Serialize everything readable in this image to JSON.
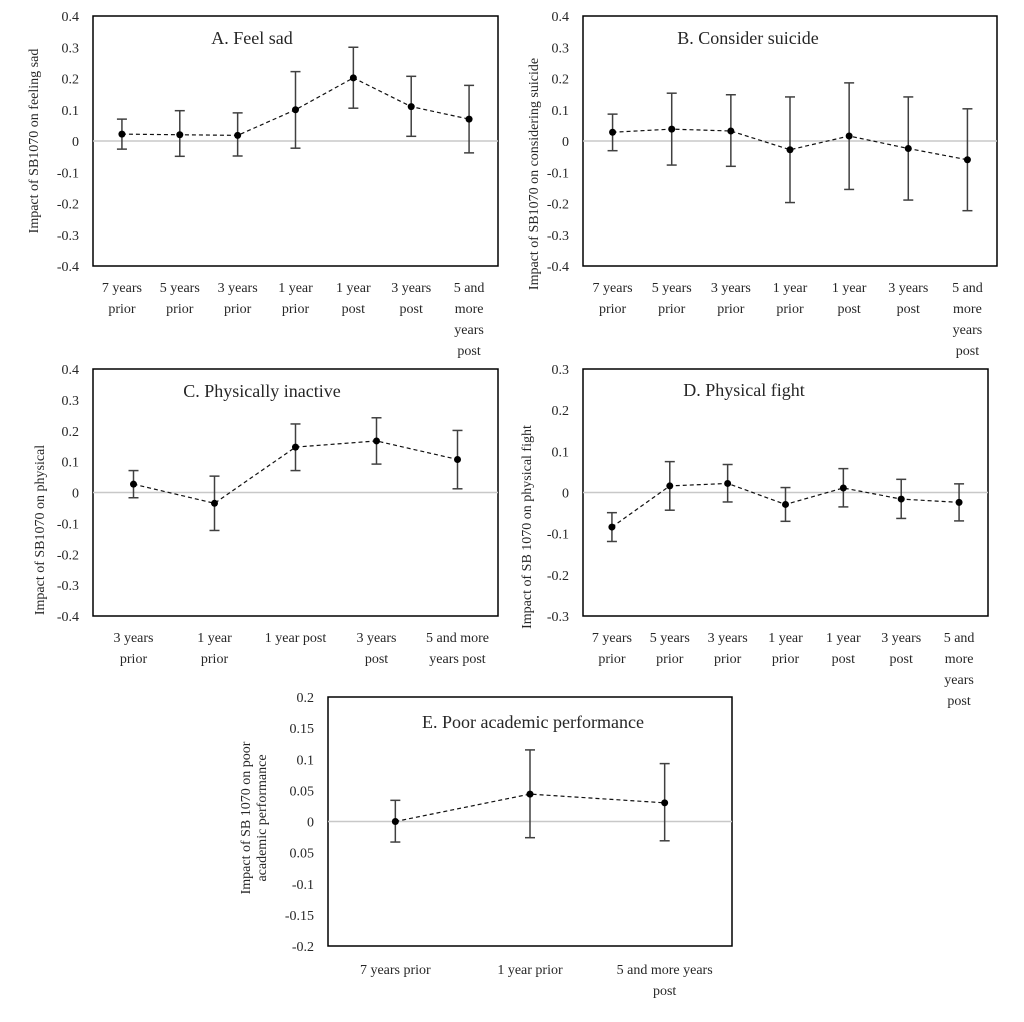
{
  "chart_data": [
    {
      "type": "line",
      "title": "A. Feel sad",
      "ylabel": "Impact of SB1070 on feeling sad",
      "xlabel": "",
      "ylim": [
        -0.4,
        0.4
      ],
      "ytick_labels": [
        "0.4",
        "0.3",
        "0.2",
        "0.1",
        "0",
        "-0.1",
        "-0.2",
        "-0.3",
        "-0.4"
      ],
      "categories": [
        [
          "7 years",
          "prior"
        ],
        [
          "5 years",
          "prior"
        ],
        [
          "3 years",
          "prior"
        ],
        [
          "1 year",
          "prior"
        ],
        [
          "1 year",
          "post"
        ],
        [
          "3 years",
          "post"
        ],
        [
          "5 and",
          "more",
          "years",
          "post"
        ]
      ],
      "values": [
        0.022,
        0.02,
        0.018,
        0.1,
        0.202,
        0.11,
        0.07
      ],
      "lower": [
        -0.026,
        -0.049,
        -0.048,
        -0.023,
        0.105,
        0.015,
        -0.038
      ],
      "upper": [
        0.07,
        0.097,
        0.09,
        0.222,
        0.3,
        0.207,
        0.178
      ],
      "grid": false
    },
    {
      "type": "line",
      "title": "B. Consider suicide",
      "ylabel": "Impact of SB1070 on considering suicide",
      "xlabel": "",
      "ylim": [
        -0.4,
        0.4
      ],
      "ytick_labels": [
        "0.4",
        "0.3",
        "0.2",
        "0.1",
        "0",
        "-0.1",
        "-0.2",
        "-0.3",
        "-0.4"
      ],
      "categories": [
        [
          "7 years",
          "prior"
        ],
        [
          "5 years",
          "prior"
        ],
        [
          "3 years",
          "prior"
        ],
        [
          "1 year",
          "prior"
        ],
        [
          "1 year",
          "post"
        ],
        [
          "3 years",
          "post"
        ],
        [
          "5 and",
          "more",
          "years",
          "post"
        ]
      ],
      "values": [
        0.028,
        0.038,
        0.032,
        -0.028,
        0.016,
        -0.024,
        -0.06
      ],
      "lower": [
        -0.031,
        -0.077,
        -0.081,
        -0.197,
        -0.155,
        -0.189,
        -0.223
      ],
      "upper": [
        0.086,
        0.153,
        0.148,
        0.141,
        0.186,
        0.141,
        0.103
      ],
      "grid": false
    },
    {
      "type": "line",
      "title": "C. Physically inactive",
      "ylabel": "Impact of SB1070 on physical",
      "xlabel": "",
      "ylim": [
        -0.4,
        0.4
      ],
      "ytick_labels": [
        "0.4",
        "0.3",
        "0.2",
        "0.1",
        "0",
        "-0.1",
        "-0.2",
        "-0.3",
        "-0.4"
      ],
      "categories": [
        [
          "3 years",
          "prior"
        ],
        [
          "1 year",
          "prior"
        ],
        [
          "1 year post"
        ],
        [
          "3 years",
          "post"
        ],
        [
          "5 and more",
          "years post"
        ]
      ],
      "values": [
        0.027,
        -0.035,
        0.147,
        0.167,
        0.107
      ],
      "lower": [
        -0.017,
        -0.123,
        0.071,
        0.092,
        0.012
      ],
      "upper": [
        0.071,
        0.053,
        0.222,
        0.242,
        0.201
      ],
      "grid": false
    },
    {
      "type": "line",
      "title": "D. Physical fight",
      "ylabel": "Impact of SB 1070 on physical fight",
      "xlabel": "",
      "ylim": [
        -0.3,
        0.3
      ],
      "ytick_labels": [
        "0.3",
        "0.2",
        "0.1",
        "0",
        "-0.1",
        "-0.2",
        "-0.3"
      ],
      "categories": [
        [
          "7 years",
          "prior"
        ],
        [
          "5 years",
          "prior"
        ],
        [
          "3 years",
          "prior"
        ],
        [
          "1 year",
          "prior"
        ],
        [
          "1 year",
          "post"
        ],
        [
          "3 years",
          "post"
        ],
        [
          "5 and",
          "more",
          "years",
          "post"
        ]
      ],
      "values": [
        -0.084,
        0.016,
        0.022,
        -0.029,
        0.011,
        -0.016,
        -0.024
      ],
      "lower": [
        -0.119,
        -0.043,
        -0.023,
        -0.07,
        -0.035,
        -0.063,
        -0.069
      ],
      "upper": [
        -0.049,
        0.075,
        0.068,
        0.012,
        0.058,
        0.032,
        0.021
      ],
      "grid": false
    },
    {
      "type": "line",
      "title": "E. Poor academic performance",
      "ylabel": "Impact of SB 1070 on poor academic performance",
      "ylabel_lines": [
        "Impact of SB 1070 on poor",
        "academic performance"
      ],
      "xlabel": "",
      "ylim": [
        -0.2,
        0.2
      ],
      "ytick_labels": [
        "0.2",
        "0.15",
        "0.1",
        "0.05",
        "0",
        "0.05",
        "-0.1",
        "-0.15",
        "-0.2"
      ],
      "categories": [
        [
          "7 years prior"
        ],
        [
          "1 year prior"
        ],
        [
          "5 and more years",
          "post"
        ]
      ],
      "values": [
        0.0,
        0.044,
        0.03
      ],
      "lower": [
        -0.033,
        -0.026,
        -0.031
      ],
      "upper": [
        0.034,
        0.115,
        0.093
      ],
      "grid": false
    }
  ]
}
